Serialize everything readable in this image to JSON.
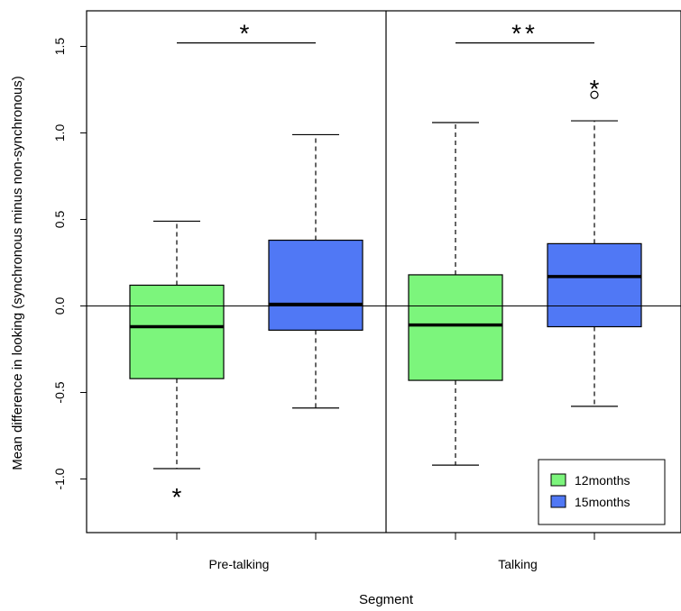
{
  "chart_data": {
    "type": "box",
    "xlabel": "Segment",
    "ylabel": "Mean difference in looking (synchronous minus non-synchronous)",
    "categories": [
      "Pre-talking",
      "Talking"
    ],
    "yticks": [
      "-1.0",
      "-0.5",
      "0.0",
      "0.5",
      "1.0",
      "1.5"
    ],
    "ylim": [
      -1.3,
      1.7
    ],
    "reference_line": 0.0,
    "series": [
      {
        "name": "12months",
        "color": "#7cf57c",
        "boxes": [
          {
            "category": "Pre-talking",
            "lower_whisker": -0.94,
            "q1": -0.42,
            "median": -0.12,
            "q3": 0.12,
            "upper_whisker": 0.49,
            "outliers": []
          },
          {
            "category": "Talking",
            "lower_whisker": -0.92,
            "q1": -0.43,
            "median": -0.11,
            "q3": 0.18,
            "upper_whisker": 1.06,
            "outliers": []
          }
        ]
      },
      {
        "name": "15months",
        "color": "#5078f5",
        "boxes": [
          {
            "category": "Pre-talking",
            "lower_whisker": -0.59,
            "q1": -0.14,
            "median": 0.01,
            "q3": 0.38,
            "upper_whisker": 0.99,
            "outliers": []
          },
          {
            "category": "Talking",
            "lower_whisker": -0.58,
            "q1": -0.12,
            "median": 0.17,
            "q3": 0.36,
            "upper_whisker": 1.07,
            "outliers": [
              1.22
            ]
          }
        ]
      }
    ],
    "annotations": [
      {
        "text": "*",
        "kind": "bracket",
        "category": "Pre-talking",
        "y": 1.52
      },
      {
        "text": "**",
        "kind": "bracket",
        "category": "Talking",
        "y": 1.52
      },
      {
        "text": "*",
        "kind": "marker",
        "category": "Pre-talking",
        "series": "12months",
        "y": -1.06
      },
      {
        "text": "*",
        "kind": "marker",
        "category": "Talking",
        "series": "15months",
        "y": 1.3
      }
    ],
    "legend": {
      "placement": "bottom-right",
      "entries": [
        "12months",
        "15months"
      ]
    }
  }
}
